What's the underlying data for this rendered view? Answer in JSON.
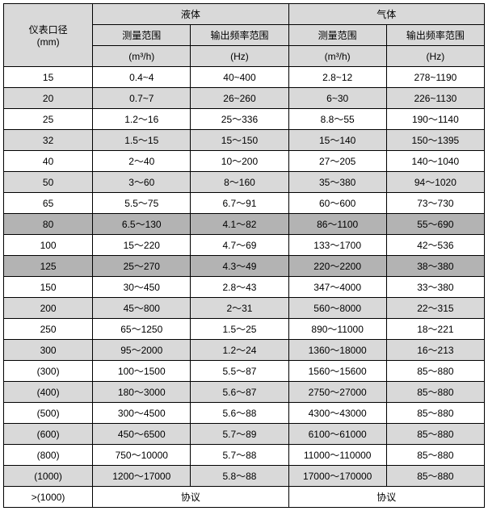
{
  "headers": {
    "col0_line1": "仪表口径",
    "col0_line2": "(mm)",
    "liquid": "液体",
    "gas": "气体",
    "meas_range": "测量范围",
    "meas_unit": "(m³/h)",
    "freq_range": "输出频率范围",
    "freq_unit": "(Hz)"
  },
  "rows": [
    {
      "dn": "15",
      "lm": "0.4~4",
      "lf": "40~400",
      "gm": "2.8~12",
      "gf": "278~1190",
      "cls": "white"
    },
    {
      "dn": "20",
      "lm": "0.7~7",
      "lf": "26~260",
      "gm": "6~30",
      "gf": "226~1130",
      "cls": "shade"
    },
    {
      "dn": "25",
      "lm": "1.2～16",
      "lf": "25～336",
      "gm": "8.8～55",
      "gf": "190～1140",
      "cls": "white"
    },
    {
      "dn": "32",
      "lm": "1.5～15",
      "lf": "15～150",
      "gm": "15～140",
      "gf": "150～1395",
      "cls": "shade"
    },
    {
      "dn": "40",
      "lm": "2～40",
      "lf": "10～200",
      "gm": "27～205",
      "gf": "140～1040",
      "cls": "white"
    },
    {
      "dn": "50",
      "lm": "3～60",
      "lf": "8～160",
      "gm": "35～380",
      "gf": "94～1020",
      "cls": "shade"
    },
    {
      "dn": "65",
      "lm": "5.5～75",
      "lf": "6.7～91",
      "gm": "60～600",
      "gf": "73～730",
      "cls": "white"
    },
    {
      "dn": "80",
      "lm": "6.5～130",
      "lf": "4.1～82",
      "gm": "86～1100",
      "gf": "55～690",
      "cls": "shade2"
    },
    {
      "dn": "100",
      "lm": "15～220",
      "lf": "4.7～69",
      "gm": "133～1700",
      "gf": "42～536",
      "cls": "white"
    },
    {
      "dn": "125",
      "lm": "25～270",
      "lf": "4.3～49",
      "gm": "220～2200",
      "gf": "38～380",
      "cls": "shade2"
    },
    {
      "dn": "150",
      "lm": "30～450",
      "lf": "2.8～43",
      "gm": "347～4000",
      "gf": "33～380",
      "cls": "white"
    },
    {
      "dn": "200",
      "lm": "45～800",
      "lf": "2～31",
      "gm": "560～8000",
      "gf": "22～315",
      "cls": "shade"
    },
    {
      "dn": "250",
      "lm": "65～1250",
      "lf": "1.5～25",
      "gm": "890～11000",
      "gf": "18～221",
      "cls": "white"
    },
    {
      "dn": "300",
      "lm": "95～2000",
      "lf": "1.2～24",
      "gm": "1360～18000",
      "gf": "16～213",
      "cls": "shade"
    },
    {
      "dn": "(300)",
      "lm": "100～1500",
      "lf": "5.5～87",
      "gm": "1560～15600",
      "gf": "85～880",
      "cls": "white"
    },
    {
      "dn": "(400)",
      "lm": "180～3000",
      "lf": "5.6～87",
      "gm": "2750～27000",
      "gf": "85～880",
      "cls": "shade"
    },
    {
      "dn": "(500)",
      "lm": "300～4500",
      "lf": "5.6～88",
      "gm": "4300～43000",
      "gf": "85～880",
      "cls": "white"
    },
    {
      "dn": "(600)",
      "lm": "450～6500",
      "lf": "5.7～89",
      "gm": "6100～61000",
      "gf": "85～880",
      "cls": "shade"
    },
    {
      "dn": "(800)",
      "lm": "750～10000",
      "lf": "5.7～88",
      "gm": "11000～110000",
      "gf": "85～880",
      "cls": "white"
    },
    {
      "dn": "(1000)",
      "lm": "1200～17000",
      "lf": "5.8～88",
      "gm": "17000～170000",
      "gf": "85～880",
      "cls": "shade"
    },
    {
      "dn": ">(1000)",
      "lm": "协议",
      "lf": "",
      "gm": "协议",
      "gf": "",
      "cls": "white",
      "merge": true
    }
  ],
  "style": {
    "header_bg": "#d9d9d9",
    "shade_bg": "#d9d9d9",
    "shade2_bg": "#b3b3b3",
    "white_bg": "#ffffff",
    "border_color": "#000000",
    "font_size": 12
  }
}
